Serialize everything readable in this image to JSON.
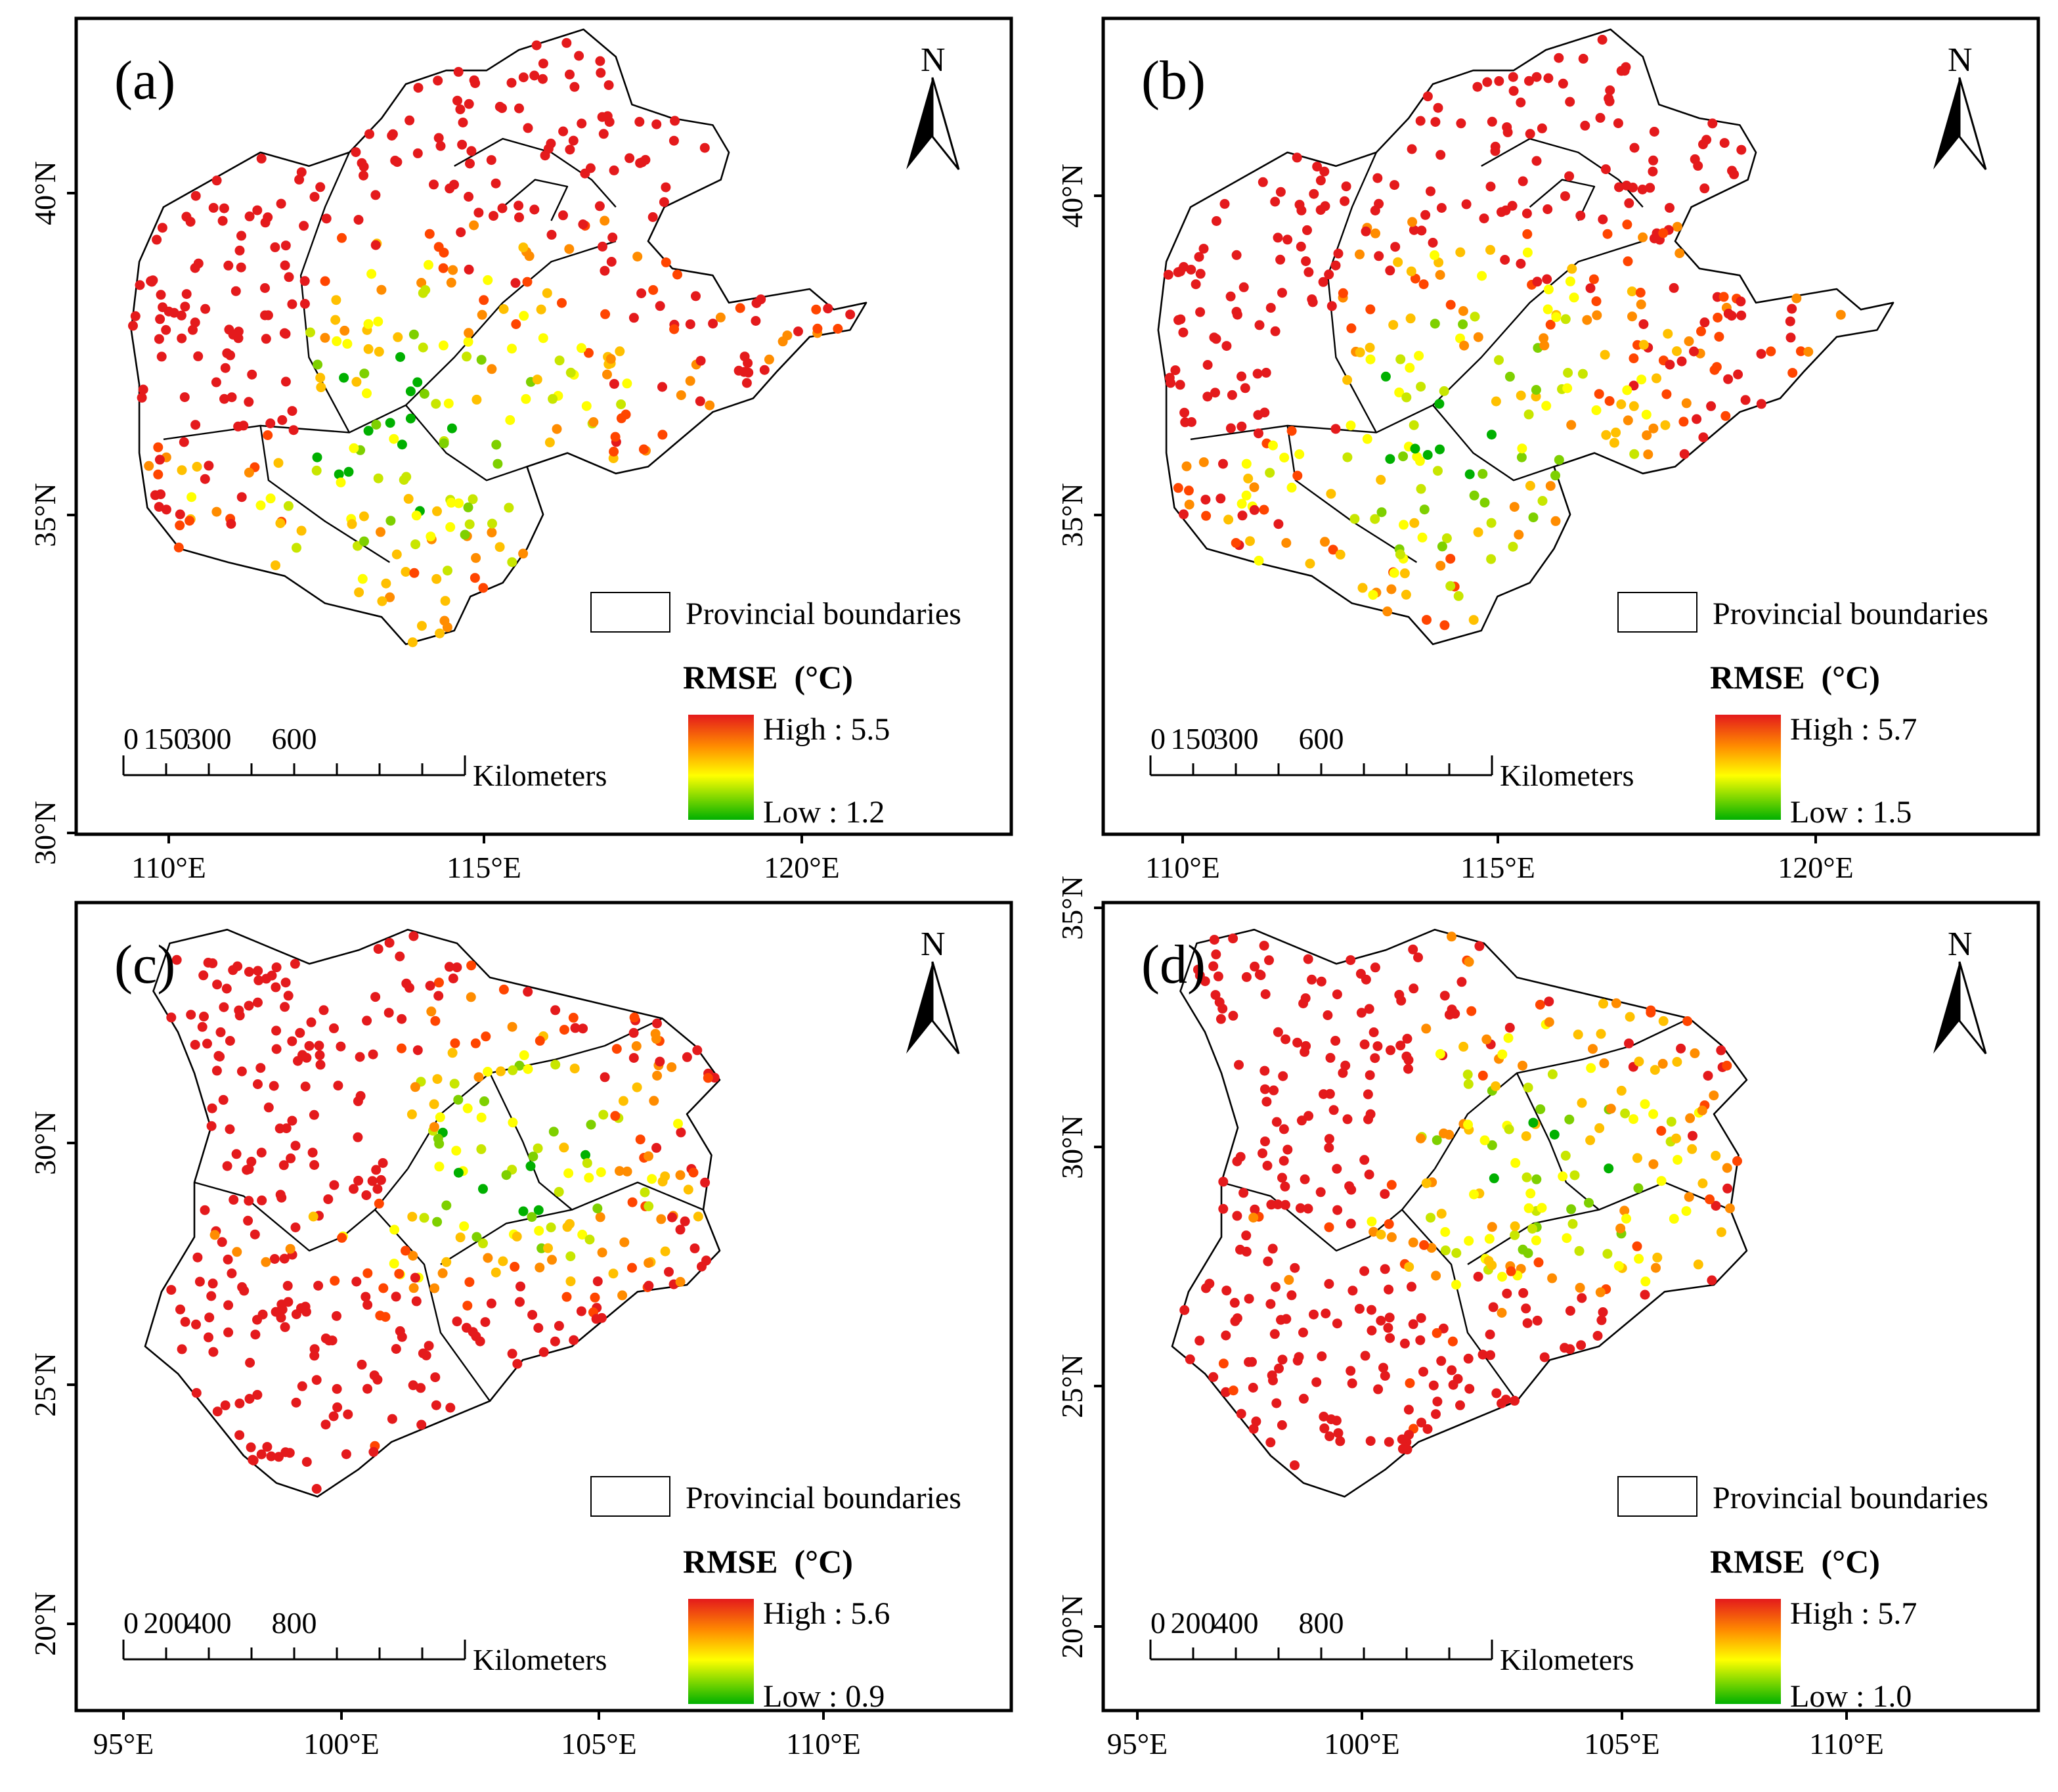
{
  "figure": {
    "panels": [
      {
        "id": "a",
        "label": "(a)",
        "region": "north",
        "north_label": "N",
        "lat_ticks": [
          "30°N",
          "35°N",
          "40°N"
        ],
        "lon_ticks": [
          "110°E",
          "115°E",
          "120°E"
        ],
        "legend": {
          "boundary_label": "Provincial boundaries",
          "title": "RMSE  (°C)",
          "high": "High : 5.5",
          "low": "Low : 1.2",
          "colors": [
            "#e41a1c",
            "#ff8c00",
            "#ffff00",
            "#00b000"
          ]
        },
        "scale": {
          "labels": [
            "0",
            "150",
            "300",
            "600"
          ],
          "unit": "Kilometers"
        }
      },
      {
        "id": "b",
        "label": "(b)",
        "region": "north",
        "north_label": "N",
        "lat_ticks": [
          "35°N",
          "40°N"
        ],
        "lon_ticks": [
          "110°E",
          "115°E",
          "120°E"
        ],
        "legend": {
          "boundary_label": "Provincial boundaries",
          "title": "RMSE  (°C)",
          "high": "High : 5.7",
          "low": "Low : 1.5",
          "colors": [
            "#e41a1c",
            "#ff8c00",
            "#ffff00",
            "#00b000"
          ]
        },
        "scale": {
          "labels": [
            "0",
            "150",
            "300",
            "600"
          ],
          "unit": "Kilometers"
        }
      },
      {
        "id": "c",
        "label": "(c)",
        "region": "southwest",
        "north_label": "N",
        "lat_ticks": [
          "20°N",
          "25°N",
          "30°N"
        ],
        "lon_ticks": [
          "95°E",
          "100°E",
          "105°E",
          "110°E"
        ],
        "legend": {
          "boundary_label": "Provincial boundaries",
          "title": "RMSE  (°C)",
          "high": "High : 5.6",
          "low": "Low : 0.9",
          "colors": [
            "#e41a1c",
            "#ff8c00",
            "#ffff00",
            "#00b000"
          ]
        },
        "scale": {
          "labels": [
            "0",
            "200",
            "400",
            "800"
          ],
          "unit": "Kilometers"
        }
      },
      {
        "id": "d",
        "label": "(d)",
        "region": "southwest",
        "north_label": "N",
        "lat_ticks": [
          "20°N",
          "25°N",
          "30°N",
          "35°N"
        ],
        "lon_ticks": [
          "95°E",
          "100°E",
          "105°E",
          "110°E"
        ],
        "legend": {
          "boundary_label": "Provincial boundaries",
          "title": "RMSE  (°C)",
          "high": "High : 5.7",
          "low": "Low : 1.0",
          "colors": [
            "#e41a1c",
            "#ff8c00",
            "#ffff00",
            "#00b000"
          ]
        },
        "scale": {
          "labels": [
            "0",
            "200",
            "400",
            "800"
          ],
          "unit": "Kilometers"
        }
      }
    ],
    "axis_extra": {
      "top_left_30N": "30°N"
    }
  }
}
